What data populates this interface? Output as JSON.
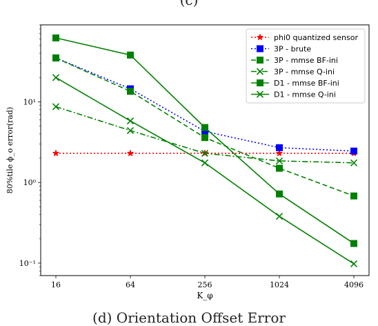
{
  "caption_top": "(c)",
  "caption": "(d) Orientation Offset Error",
  "chart_data": {
    "type": "line",
    "xlabel": "K_φ",
    "ylabel": "80%tile ϕ_o error(rad)",
    "xscale": "log2",
    "yscale": "log10",
    "xlim": [
      16,
      4096
    ],
    "ylim": [
      0.07,
      90
    ],
    "x": [
      16,
      64,
      256,
      1024,
      4096
    ],
    "x_tick_labels": [
      "16",
      "64",
      "256",
      "1024",
      "4096"
    ],
    "y_tick_values": [
      0.1,
      1,
      10
    ],
    "y_tick_labels": [
      "10⁻¹",
      "10⁰",
      "10¹"
    ],
    "legend_position": "upper right",
    "grid": false,
    "series": [
      {
        "name": "phi0 quantized sensor",
        "color": "#ff0000",
        "linestyle": "dotted",
        "marker": "star",
        "values": [
          2.3,
          2.3,
          2.3,
          2.3,
          2.3
        ]
      },
      {
        "name": "3P - brute",
        "color": "#0000ff",
        "linestyle": "dotted",
        "marker": "square",
        "values": [
          35,
          14.5,
          4.3,
          2.7,
          2.45
        ]
      },
      {
        "name": "3P - mmse BF-ini",
        "color": "#008000",
        "linestyle": "dashed",
        "marker": "square",
        "values": [
          35,
          13.5,
          3.6,
          1.5,
          0.68
        ]
      },
      {
        "name": "3P - mmse Q-ini",
        "color": "#008000",
        "linestyle": "dashdot",
        "marker": "x",
        "values": [
          8.7,
          4.4,
          2.3,
          1.85,
          1.75
        ]
      },
      {
        "name": "D1 - mmse BF-ini",
        "color": "#008000",
        "linestyle": "solid",
        "marker": "square",
        "values": [
          62,
          38,
          4.8,
          0.72,
          0.175
        ]
      },
      {
        "name": "D1 - mmse Q-ini",
        "color": "#008000",
        "linestyle": "solid",
        "marker": "x",
        "values": [
          20,
          5.8,
          1.75,
          0.38,
          0.098
        ]
      }
    ]
  }
}
